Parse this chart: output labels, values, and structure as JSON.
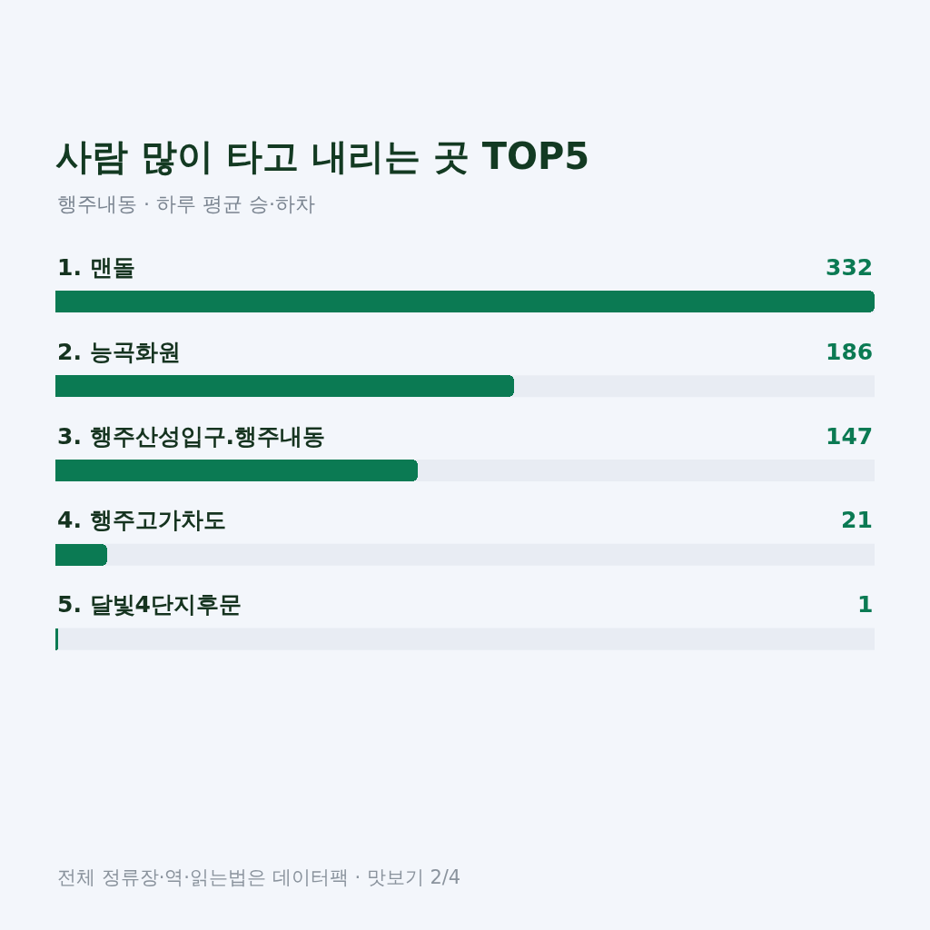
{
  "chart_data": {
    "type": "bar",
    "orientation": "horizontal",
    "title": "사람 많이 타고 내리는 곳 TOP5",
    "subtitle": "행주내동 · 하루 평균 승·하차",
    "categories": [
      "1. 맨돌",
      "2. 능곡화원",
      "3. 행주산성입구.행주내동",
      "4. 행주고가차도",
      "5. 달빛4단지후문"
    ],
    "values": [
      332,
      186,
      147,
      21,
      1
    ],
    "color": "#0b7a53",
    "xlim": [
      0,
      332
    ],
    "data_labels": true,
    "tick_labels": false,
    "grid": false,
    "annotations": [
      "전체 정류장·역·읽는법은 데이터팩 · 맛보기 2/4"
    ]
  }
}
